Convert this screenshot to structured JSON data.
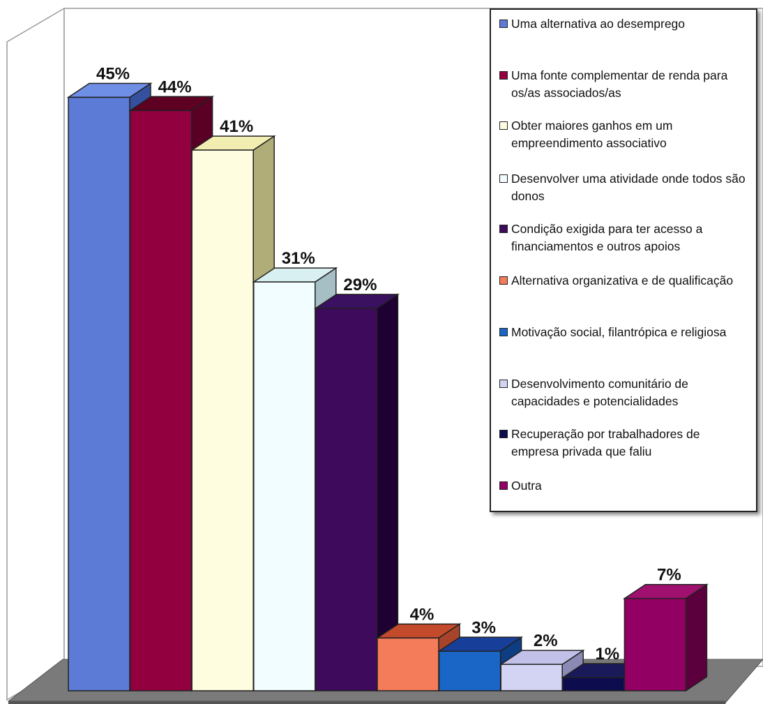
{
  "chart_data": {
    "type": "bar",
    "categories": [
      "Uma alternativa ao desemprego",
      "Uma fonte complementar de renda para os/as associados/as",
      "Obter maiores ganhos em um empreendimento associativo",
      "Desenvolver uma atividade onde todos são donos",
      "Condição exigida para ter acesso a financiamentos e outros apoios",
      "Alternativa organizativa e de qualificação",
      "Motivação social, filantrópica e religiosa",
      "Desenvolvimento comunitário de capacidades e potencialidades",
      "Recuperação por trabalhadores de empresa privada que faliu",
      "Outra"
    ],
    "values": [
      45,
      44,
      41,
      31,
      29,
      4,
      3,
      2,
      1,
      7
    ],
    "value_labels": [
      "45%",
      "44%",
      "41%",
      "31%",
      "29%",
      "4%",
      "3%",
      "2%",
      "1%",
      "7%"
    ],
    "colors": [
      "#5b7bd6",
      "#920040",
      "#fffde0",
      "#f2fdff",
      "#3d0a5c",
      "#f47c5a",
      "#1a66c7",
      "#d3d3f3",
      "#0c0c4e",
      "#930063"
    ],
    "side_colors": [
      "#35509f",
      "#5a0025",
      "#b0ad78",
      "#a6bfc4",
      "#1f0033",
      "#a8442a",
      "#0d3d82",
      "#8a8ab4",
      "#05052b",
      "#5c003d"
    ],
    "top_colors": [
      "#6f8fe6",
      "#5e0022",
      "#f2eeb2",
      "#d8f0f2",
      "#3a1060",
      "#c44a2c",
      "#173f9a",
      "#c0c0e8",
      "#1a1a5a",
      "#a0106e"
    ],
    "title": "",
    "xlabel": "",
    "ylabel": "",
    "ylim": [
      0,
      50
    ],
    "grid": false,
    "legend_position": "top-right"
  }
}
